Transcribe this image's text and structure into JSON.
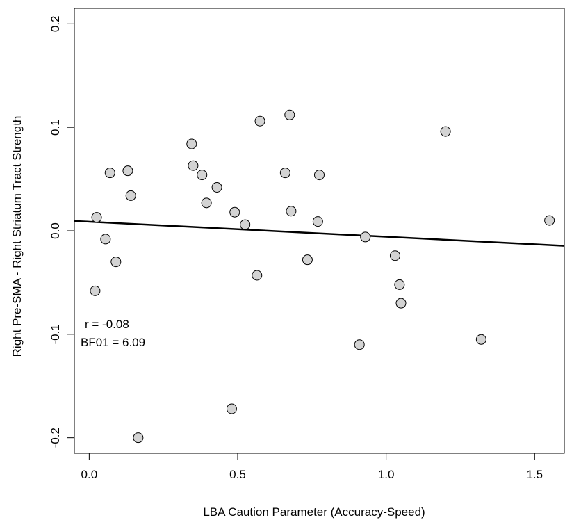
{
  "chart_data": {
    "type": "scatter",
    "xlabel": "LBA Caution Parameter (Accuracy-Speed)",
    "ylabel": "Right Pre-SMA - Right Striatum Tract Strength",
    "xlim": [
      -0.05,
      1.6
    ],
    "ylim": [
      -0.215,
      0.215
    ],
    "x_ticks": [
      0.0,
      0.5,
      1.0,
      1.5
    ],
    "x_tick_labels": [
      "0.0",
      "0.5",
      "1.0",
      "1.5"
    ],
    "y_ticks": [
      -0.2,
      -0.1,
      0.0,
      0.1,
      0.2
    ],
    "y_tick_labels": [
      "-0.2",
      "-0.1",
      "0.0",
      "0.1",
      "0.2"
    ],
    "grid": false,
    "point_fill": "#d3d3d3",
    "point_stroke": "#000000",
    "points": [
      {
        "x": 0.02,
        "y": -0.058
      },
      {
        "x": 0.025,
        "y": 0.013
      },
      {
        "x": 0.055,
        "y": -0.008
      },
      {
        "x": 0.07,
        "y": 0.056
      },
      {
        "x": 0.09,
        "y": -0.03
      },
      {
        "x": 0.13,
        "y": 0.058
      },
      {
        "x": 0.14,
        "y": 0.034
      },
      {
        "x": 0.165,
        "y": -0.2
      },
      {
        "x": 0.345,
        "y": 0.084
      },
      {
        "x": 0.35,
        "y": 0.063
      },
      {
        "x": 0.38,
        "y": 0.054
      },
      {
        "x": 0.395,
        "y": 0.027
      },
      {
        "x": 0.43,
        "y": 0.042
      },
      {
        "x": 0.48,
        "y": -0.172
      },
      {
        "x": 0.49,
        "y": 0.018
      },
      {
        "x": 0.525,
        "y": 0.006
      },
      {
        "x": 0.565,
        "y": -0.043
      },
      {
        "x": 0.575,
        "y": 0.106
      },
      {
        "x": 0.66,
        "y": 0.056
      },
      {
        "x": 0.675,
        "y": 0.112
      },
      {
        "x": 0.68,
        "y": 0.019
      },
      {
        "x": 0.735,
        "y": -0.028
      },
      {
        "x": 0.77,
        "y": 0.009
      },
      {
        "x": 0.775,
        "y": 0.054
      },
      {
        "x": 0.91,
        "y": -0.11
      },
      {
        "x": 0.93,
        "y": -0.006
      },
      {
        "x": 1.03,
        "y": -0.024
      },
      {
        "x": 1.045,
        "y": -0.052
      },
      {
        "x": 1.05,
        "y": -0.07
      },
      {
        "x": 1.2,
        "y": 0.096
      },
      {
        "x": 1.32,
        "y": -0.105
      },
      {
        "x": 1.55,
        "y": 0.01
      }
    ],
    "fit_line": {
      "x": [
        -0.05,
        1.6
      ],
      "y": [
        0.0095,
        -0.0145
      ]
    },
    "annotations": [
      "r = -0.08",
      "BF01 = 6.09"
    ]
  }
}
